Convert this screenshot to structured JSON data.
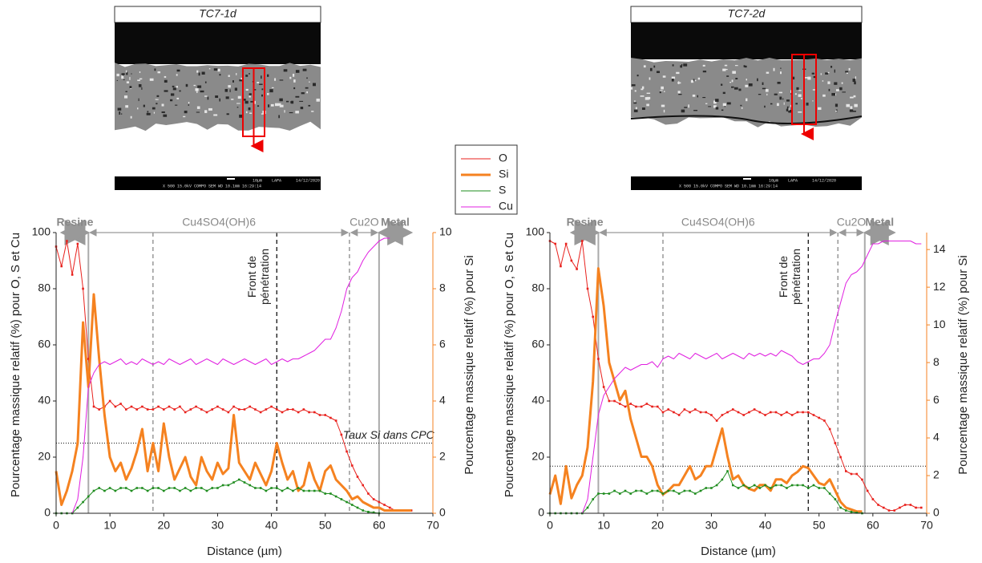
{
  "images": [
    {
      "title": "TC7-1d",
      "scale": "10µm",
      "lab": "LAPA",
      "date": "14/12/2020",
      "info": "X 500   15.0kV COMPO   SEM   WD 10.1mm 16:29:14"
    },
    {
      "title": "TC7-2d",
      "scale": "10µm",
      "lab": "LAPA",
      "date": "14/12/2020",
      "info": "X 500   15.0kV COMPO   SEM   WD 10.1mm 16:29:14"
    }
  ],
  "chart_data": [
    {
      "type": "line",
      "x_label": "Distance (µm)",
      "y_label": "Pourcentage massique relatif (%) pour O, S et Cu",
      "y2_label": "Pourcentage massique relatif (%) pour Si",
      "xlim": [
        0,
        70
      ],
      "xticks": [
        0,
        10,
        20,
        30,
        40,
        50,
        60,
        70
      ],
      "ylim": [
        0,
        100
      ],
      "yticks": [
        0,
        20,
        40,
        60,
        80,
        100
      ],
      "y2lim": [
        0,
        10
      ],
      "y2ticks": [
        0,
        2,
        4,
        6,
        8,
        10
      ],
      "y2_color": "#f58220",
      "x": [
        0,
        1,
        2,
        3,
        4,
        5,
        6,
        7,
        8,
        9,
        10,
        11,
        12,
        13,
        14,
        15,
        16,
        17,
        18,
        19,
        20,
        21,
        22,
        23,
        24,
        25,
        26,
        27,
        28,
        29,
        30,
        31,
        32,
        33,
        34,
        35,
        36,
        37,
        38,
        39,
        40,
        41,
        42,
        43,
        44,
        45,
        46,
        47,
        48,
        49,
        50,
        51,
        52,
        53,
        54,
        55,
        56,
        57,
        58,
        59,
        60,
        61,
        62,
        63,
        64,
        65,
        66
      ],
      "series": [
        {
          "name": "O",
          "color": "#e8201c",
          "width": 1,
          "markers": true,
          "values": [
            95,
            88,
            97,
            85,
            96,
            80,
            55,
            38,
            37,
            38,
            40,
            38,
            39,
            37,
            38,
            37,
            38,
            37,
            37,
            38,
            37,
            38,
            37,
            38,
            36,
            37,
            38,
            37,
            36,
            37,
            38,
            37,
            36,
            38,
            37,
            37,
            38,
            37,
            36,
            37,
            38,
            37,
            36,
            37,
            37,
            36,
            37,
            36,
            36,
            35,
            35,
            34,
            33,
            28,
            22,
            17,
            13,
            10,
            7,
            5,
            4,
            3,
            2,
            1,
            1,
            1,
            1
          ]
        },
        {
          "name": "Si",
          "color": "#f58220",
          "width": 3,
          "markers": false,
          "axis": "y2",
          "values": [
            1.5,
            0.3,
            0.8,
            1.5,
            2.5,
            6.8,
            4.5,
            7.8,
            5.5,
            3.5,
            2,
            1.5,
            1.8,
            1.2,
            1.6,
            2.2,
            3,
            1.5,
            2.5,
            1.5,
            3.2,
            2,
            1.2,
            1.6,
            2,
            1.3,
            1,
            2,
            1.5,
            1.2,
            1.8,
            1.4,
            1.6,
            3.5,
            1.8,
            1.5,
            1.2,
            1.8,
            1.4,
            1,
            1.5,
            2.5,
            1.8,
            1.2,
            1.5,
            0.8,
            1,
            1.8,
            1.2,
            0.8,
            1.5,
            1.7,
            1.2,
            1,
            0.8,
            0.5,
            0.6,
            0.4,
            0.3,
            0.2,
            0.2,
            0.1,
            0.1,
            0.1,
            0.1,
            0.1,
            0.1
          ]
        },
        {
          "name": "S",
          "color": "#1e8c1e",
          "width": 1,
          "markers": true,
          "values": [
            0,
            0,
            0,
            0,
            2,
            4,
            6,
            8,
            9,
            8,
            9,
            8,
            9,
            9,
            8,
            9,
            9,
            8,
            9,
            9,
            8,
            9,
            9,
            8,
            9,
            8,
            9,
            9,
            8,
            9,
            9,
            10,
            10,
            11,
            12,
            11,
            10,
            9,
            9,
            8,
            9,
            9,
            8,
            9,
            8,
            9,
            8,
            8,
            8,
            8,
            7,
            7,
            6,
            5,
            4,
            3,
            2,
            1,
            0.5,
            0.3,
            0,
            null,
            null,
            null,
            null,
            null,
            null
          ]
        },
        {
          "name": "Cu",
          "color": "#e020e0",
          "width": 1,
          "markers": false,
          "values": [
            0,
            0,
            0,
            0,
            5,
            20,
            45,
            50,
            53,
            54,
            53,
            54,
            55,
            53,
            54,
            53,
            55,
            54,
            53,
            54,
            53,
            55,
            54,
            53,
            54,
            55,
            53,
            54,
            55,
            54,
            53,
            55,
            54,
            53,
            54,
            55,
            54,
            53,
            54,
            55,
            53,
            54,
            55,
            54,
            55,
            55,
            56,
            57,
            58,
            60,
            62,
            62,
            66,
            72,
            80,
            84,
            86,
            90,
            93,
            95,
            97,
            98,
            98,
            null,
            null,
            null,
            null
          ]
        }
      ],
      "phases": [
        {
          "label": "Resine",
          "from": 1,
          "to": 6,
          "bold": true
        },
        {
          "label": "Cu4SO4(OH)6",
          "from": 6,
          "to": 54.5,
          "bold": false
        },
        {
          "label": "Cu2O",
          "from": 54.5,
          "to": 60,
          "bold": false
        },
        {
          "label": "Metal",
          "from": 60,
          "to": 66,
          "bold": true
        }
      ],
      "boundaries": [
        {
          "x": 6,
          "style": "solid"
        },
        {
          "x": 18,
          "style": "dashed"
        },
        {
          "x": 41,
          "style": "front"
        },
        {
          "x": 54.5,
          "style": "dashed"
        },
        {
          "x": 60,
          "style": "solid"
        }
      ],
      "front_label": [
        "Front de",
        "pénétration"
      ],
      "si_threshold": 2.5,
      "threshold_label": "Taux Si dans CPC"
    },
    {
      "type": "line",
      "x_label": "Distance (µm)",
      "y_label": "Pourcentage massique relatif (%) pour O, S et Cu",
      "y2_label": "Pourcentage massique relatif (%) pour Si",
      "xlim": [
        0,
        70
      ],
      "xticks": [
        0,
        10,
        20,
        30,
        40,
        50,
        60,
        70
      ],
      "ylim": [
        0,
        100
      ],
      "yticks": [
        0,
        20,
        40,
        60,
        80,
        100
      ],
      "y2lim": [
        0,
        14.9
      ],
      "y2ticks": [
        0,
        2,
        4,
        6,
        8,
        10,
        12,
        14
      ],
      "y2_color": "#f58220",
      "x": [
        0,
        1,
        2,
        3,
        4,
        5,
        6,
        7,
        8,
        9,
        10,
        11,
        12,
        13,
        14,
        15,
        16,
        17,
        18,
        19,
        20,
        21,
        22,
        23,
        24,
        25,
        26,
        27,
        28,
        29,
        30,
        31,
        32,
        33,
        34,
        35,
        36,
        37,
        38,
        39,
        40,
        41,
        42,
        43,
        44,
        45,
        46,
        47,
        48,
        49,
        50,
        51,
        52,
        53,
        54,
        55,
        56,
        57,
        58,
        59,
        60,
        61,
        62,
        63,
        64,
        65,
        66,
        67,
        68,
        69
      ],
      "series": [
        {
          "name": "O",
          "color": "#e8201c",
          "width": 1,
          "markers": true,
          "values": [
            97,
            96,
            88,
            96,
            90,
            87,
            97,
            80,
            70,
            55,
            45,
            40,
            40,
            39,
            38,
            39,
            38,
            38,
            39,
            38,
            38,
            36,
            37,
            36,
            35,
            37,
            36,
            37,
            36,
            36,
            35,
            33,
            35,
            36,
            37,
            36,
            35,
            36,
            37,
            36,
            35,
            36,
            36,
            35,
            36,
            35,
            36,
            36,
            36,
            35,
            34,
            33,
            30,
            25,
            20,
            15,
            14,
            14,
            12,
            8,
            5,
            3,
            2,
            1,
            1,
            2,
            3,
            3,
            2,
            2
          ]
        },
        {
          "name": "Si",
          "color": "#f58220",
          "width": 3,
          "markers": false,
          "axis": "y2",
          "values": [
            1,
            2,
            0.5,
            2.5,
            0.8,
            1.5,
            2,
            3.5,
            7,
            13,
            11,
            8,
            7,
            6,
            6.5,
            5,
            4,
            3,
            3,
            2.5,
            1.5,
            1,
            1.2,
            1.5,
            1.5,
            2,
            2.5,
            1.8,
            2,
            2.5,
            2.5,
            3.5,
            4.5,
            3,
            1.8,
            2,
            1.5,
            1.3,
            1.2,
            1.5,
            1.5,
            1.2,
            1.8,
            1.8,
            1.6,
            2,
            2.2,
            2.5,
            2.4,
            2,
            1.6,
            1.5,
            1.8,
            1.2,
            0.6,
            0.3,
            0.2,
            0.1,
            0.1,
            null,
            null,
            null,
            null,
            null,
            null,
            null,
            null,
            null,
            null,
            null
          ]
        },
        {
          "name": "S",
          "color": "#1e8c1e",
          "width": 1,
          "markers": true,
          "values": [
            0,
            0,
            0,
            0,
            0,
            0,
            0,
            2,
            5,
            7,
            7,
            7,
            8,
            7,
            8,
            7,
            8,
            8,
            7,
            8,
            8,
            7,
            8,
            8,
            7,
            8,
            8,
            7,
            8,
            9,
            9,
            10,
            12,
            15,
            10,
            9,
            10,
            9,
            10,
            9,
            10,
            9,
            10,
            10,
            9,
            10,
            10,
            10,
            9,
            10,
            9,
            9,
            7,
            5,
            2,
            1,
            0.5,
            0.2,
            0,
            null,
            null,
            null,
            null,
            null,
            null,
            null,
            null,
            null,
            null,
            null
          ]
        },
        {
          "name": "Cu",
          "color": "#e020e0",
          "width": 1,
          "markers": false,
          "values": [
            0,
            0,
            0,
            0,
            0,
            0,
            0,
            5,
            20,
            35,
            42,
            45,
            48,
            50,
            52,
            51,
            52,
            53,
            53,
            54,
            52,
            55,
            56,
            55,
            57,
            56,
            55,
            57,
            56,
            55,
            56,
            57,
            55,
            56,
            57,
            56,
            55,
            57,
            56,
            57,
            56,
            57,
            56,
            58,
            57,
            56,
            54,
            53,
            54,
            55,
            55,
            57,
            60,
            68,
            75,
            82,
            85,
            86,
            88,
            92,
            96,
            96,
            97,
            97,
            97,
            97,
            97,
            97,
            96,
            96
          ]
        }
      ],
      "phases": [
        {
          "label": "Resine",
          "from": 4,
          "to": 9,
          "bold": true
        },
        {
          "label": "Cu4SO4(OH)6",
          "from": 9,
          "to": 53.5,
          "bold": false
        },
        {
          "label": "Cu2O",
          "from": 53.5,
          "to": 58.5,
          "bold": false
        },
        {
          "label": "Metal",
          "from": 58.5,
          "to": 64,
          "bold": true
        }
      ],
      "boundaries": [
        {
          "x": 9,
          "style": "solid"
        },
        {
          "x": 21,
          "style": "dashed"
        },
        {
          "x": 48,
          "style": "front"
        },
        {
          "x": 53.5,
          "style": "dashed"
        },
        {
          "x": 58.5,
          "style": "solid"
        }
      ],
      "front_label": [
        "Front de",
        "pénétration"
      ],
      "si_threshold": 2.5
    }
  ]
}
